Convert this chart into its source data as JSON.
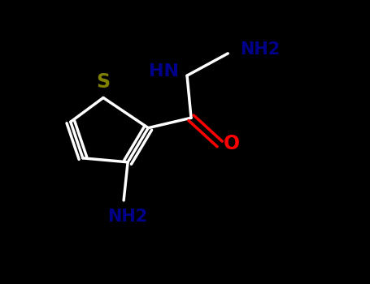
{
  "background_color": "#000000",
  "bond_color": "#ffffff",
  "S_color": "#808000",
  "N_color": "#00008B",
  "O_color": "#FF0000",
  "label_S": "S",
  "label_HN": "HN",
  "label_NH2_top": "NH2",
  "label_O": "O",
  "label_NH2_bot": "NH2",
  "figsize": [
    4.55,
    3.5
  ],
  "dpi": 100,
  "xlim": [
    0,
    9
  ],
  "ylim": [
    0,
    7
  ]
}
